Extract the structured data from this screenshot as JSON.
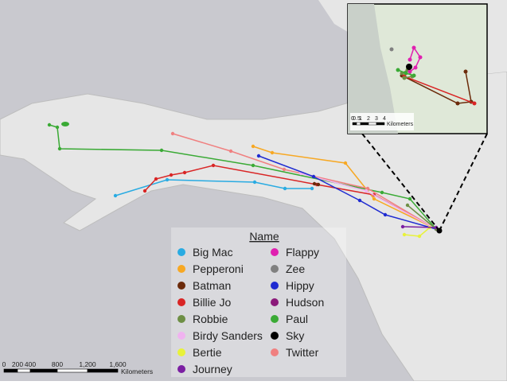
{
  "legend": {
    "title": "Name",
    "items": [
      {
        "name": "Big Mac",
        "color": "#29abe2"
      },
      {
        "name": "Pepperoni",
        "color": "#f7a823"
      },
      {
        "name": "Batman",
        "color": "#6b2a0a"
      },
      {
        "name": "Billie Jo",
        "color": "#d92525"
      },
      {
        "name": "Robbie",
        "color": "#6e8f45"
      },
      {
        "name": "Birdy Sanders",
        "color": "#f0b3f0"
      },
      {
        "name": "Bertie",
        "color": "#e8f23a"
      },
      {
        "name": "Journey",
        "color": "#7b1fa2"
      },
      {
        "name": "Flappy",
        "color": "#e020b0"
      },
      {
        "name": "Zee",
        "color": "#808080"
      },
      {
        "name": "Hippy",
        "color": "#1f2bd1"
      },
      {
        "name": "Hudson",
        "color": "#8b1a7a"
      },
      {
        "name": "Paul",
        "color": "#3aaa35"
      },
      {
        "name": "Sky",
        "color": "#000000"
      },
      {
        "name": "Twitter",
        "color": "#f08080"
      }
    ]
  },
  "scale_bar": {
    "labels": [
      "0",
      "200",
      "400",
      "800",
      "1,200",
      "1,600"
    ],
    "unit": "Kilometers"
  },
  "inset": {
    "scale_bar": {
      "labels": [
        "0",
        "0.5",
        "1",
        "2",
        "3",
        "4"
      ],
      "unit": "Kilometers"
    }
  }
}
